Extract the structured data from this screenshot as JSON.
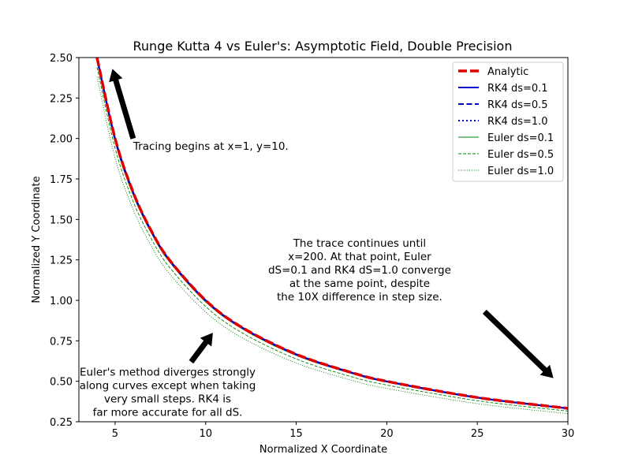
{
  "chart_data": {
    "type": "line",
    "title": "Runge Kutta 4 vs Euler's: Asymptotic Field, Double Precision",
    "xlabel": "Normalized X Coordinate",
    "ylabel": "Normalized Y Coordinate",
    "xlim": [
      3,
      30
    ],
    "ylim": [
      0.25,
      2.5
    ],
    "xticks": [
      "5",
      "10",
      "15",
      "20",
      "25",
      "30"
    ],
    "xtick_values": [
      5,
      10,
      15,
      20,
      25,
      30
    ],
    "yticks": [
      "0.25",
      "0.50",
      "0.75",
      "1.00",
      "1.25",
      "1.50",
      "1.75",
      "2.00",
      "2.25",
      "2.50"
    ],
    "ytick_values": [
      0.25,
      0.5,
      0.75,
      1.0,
      1.25,
      1.5,
      1.75,
      2.0,
      2.25,
      2.5
    ],
    "grid": false,
    "legend_position": "top-right",
    "series": [
      {
        "name": "Analytic",
        "color": "#e00000",
        "style": "dashed-thick",
        "x": [
          4,
          5,
          6,
          7,
          8,
          10,
          12,
          15,
          18,
          20,
          25,
          30
        ],
        "y": [
          2.5,
          2.0,
          1.667,
          1.429,
          1.25,
          1.0,
          0.833,
          0.667,
          0.556,
          0.5,
          0.4,
          0.333
        ]
      },
      {
        "name": "RK4 ds=0.1",
        "color": "#0000cc",
        "style": "solid",
        "x": [
          4,
          5,
          6,
          7,
          8,
          10,
          12,
          15,
          18,
          20,
          25,
          30
        ],
        "y": [
          2.5,
          2.0,
          1.667,
          1.429,
          1.25,
          1.0,
          0.833,
          0.667,
          0.556,
          0.5,
          0.4,
          0.333
        ]
      },
      {
        "name": "RK4 ds=0.5",
        "color": "#0000cc",
        "style": "dashed",
        "x": [
          4,
          5,
          6,
          7,
          8,
          10,
          12,
          15,
          18,
          20,
          25,
          30
        ],
        "y": [
          2.5,
          2.0,
          1.667,
          1.429,
          1.25,
          1.0,
          0.833,
          0.667,
          0.556,
          0.5,
          0.4,
          0.333
        ]
      },
      {
        "name": "RK4 ds=1.0",
        "color": "#0000cc",
        "style": "dotted",
        "x": [
          4,
          5,
          6,
          7,
          8,
          10,
          12,
          15,
          18,
          20,
          25,
          30
        ],
        "y": [
          2.49,
          1.99,
          1.66,
          1.425,
          1.247,
          0.998,
          0.831,
          0.665,
          0.554,
          0.499,
          0.399,
          0.332
        ]
      },
      {
        "name": "Euler ds=0.1",
        "color": "#008000",
        "style": "solid-thin",
        "x": [
          4,
          5,
          6,
          7,
          8,
          10,
          12,
          15,
          18,
          20,
          25,
          30
        ],
        "y": [
          2.48,
          1.98,
          1.65,
          1.415,
          1.238,
          0.99,
          0.825,
          0.66,
          0.55,
          0.495,
          0.396,
          0.33
        ]
      },
      {
        "name": "Euler ds=0.5",
        "color": "#008000",
        "style": "dashed-thin",
        "x": [
          4,
          5,
          6,
          7,
          8,
          10,
          12,
          15,
          18,
          20,
          25,
          30
        ],
        "y": [
          2.44,
          1.94,
          1.61,
          1.38,
          1.205,
          0.962,
          0.8,
          0.638,
          0.53,
          0.477,
          0.38,
          0.316
        ]
      },
      {
        "name": "Euler ds=1.0",
        "color": "#008000",
        "style": "dotted-thin",
        "x": [
          4,
          5,
          6,
          7,
          8,
          10,
          12,
          15,
          18,
          20,
          25,
          30
        ],
        "y": [
          2.38,
          1.88,
          1.56,
          1.335,
          1.165,
          0.928,
          0.77,
          0.613,
          0.508,
          0.456,
          0.362,
          0.3
        ]
      }
    ],
    "annotations": [
      {
        "lines": [
          "Tracing begins at x=1, y=10."
        ],
        "text_x": 6.0,
        "text_y": 1.93,
        "align": "start",
        "arrow_from": [
          6.0,
          2.0
        ],
        "arrow_to": [
          4.85,
          2.43
        ]
      },
      {
        "lines": [
          "The trace continues until",
          "x=200.  At that point, Euler",
          "dS=0.1 and RK4 dS=1.0 converge",
          "at the same point, despite",
          "the 10X difference in step size."
        ],
        "text_x": 18.5,
        "text_y": 1.33,
        "align": "middle",
        "arrow_from": [
          25.4,
          0.93
        ],
        "arrow_to": [
          29.2,
          0.52
        ]
      },
      {
        "lines": [
          "Euler's method diverges strongly",
          "along curves except when taking",
          "very small steps.  RK4 is",
          "far more accurate for all dS."
        ],
        "text_x": 7.9,
        "text_y": 0.535,
        "align": "middle",
        "arrow_from": [
          9.2,
          0.62
        ],
        "arrow_to": [
          10.4,
          0.8
        ]
      }
    ]
  }
}
